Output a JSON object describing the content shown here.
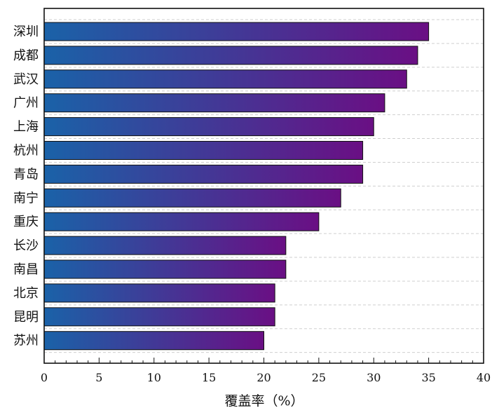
{
  "chart_data": {
    "type": "bar",
    "orientation": "horizontal",
    "categories": [
      "深圳",
      "成都",
      "武汉",
      "广州",
      "上海",
      "杭州",
      "青岛",
      "南宁",
      "重庆",
      "长沙",
      "南昌",
      "北京",
      "昆明",
      "苏州"
    ],
    "values": [
      35,
      34,
      33,
      31,
      30,
      29,
      29,
      27,
      25,
      22,
      22,
      21,
      21,
      20
    ],
    "title": "",
    "xlabel": "覆盖率（%）",
    "ylabel": "",
    "xlim": [
      0,
      40
    ],
    "x_ticks": [
      "0",
      "5",
      "10",
      "15",
      "20",
      "25",
      "30",
      "35",
      "40"
    ],
    "grid": "horizontal dashed",
    "legend": "none",
    "bar_gradient": [
      "#1a62a8",
      "#6a0f84"
    ]
  }
}
